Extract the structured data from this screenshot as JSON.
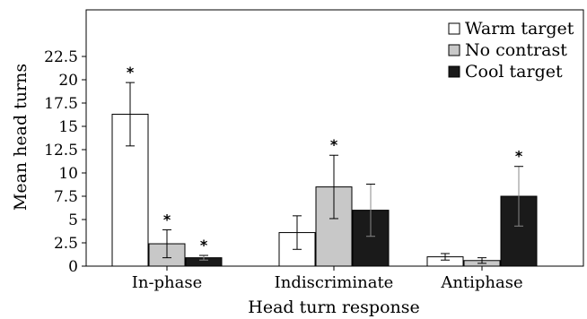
{
  "chart_data": {
    "type": "bar",
    "xlabel": "Head turn response",
    "ylabel": "Mean head turns",
    "categories": [
      "In-phase",
      "Indiscriminate",
      "Antiphase"
    ],
    "ylim": [
      0,
      27.5
    ],
    "yticks": [
      "0",
      "2.5",
      "5",
      "7.5",
      "10",
      "12.5",
      "15",
      "17.5",
      "20",
      "22.5"
    ],
    "legend_position": "top-right",
    "grid": false,
    "series": [
      {
        "name": "Warm target",
        "color": "#ffffff",
        "values": [
          16.3,
          3.6,
          1.0
        ],
        "errors": [
          3.4,
          1.8,
          0.35
        ],
        "significant": [
          true,
          false,
          false
        ]
      },
      {
        "name": "No contrast",
        "color": "#c8c8c8",
        "values": [
          2.4,
          8.5,
          0.6
        ],
        "errors": [
          1.5,
          3.4,
          0.3
        ],
        "significant": [
          true,
          true,
          false
        ]
      },
      {
        "name": "Cool target",
        "color": "#1a1a1a",
        "values": [
          0.9,
          6.0,
          7.5
        ],
        "errors": [
          0.25,
          2.8,
          3.2
        ],
        "significant": [
          true,
          false,
          true
        ]
      }
    ],
    "significance_marker": "*"
  }
}
